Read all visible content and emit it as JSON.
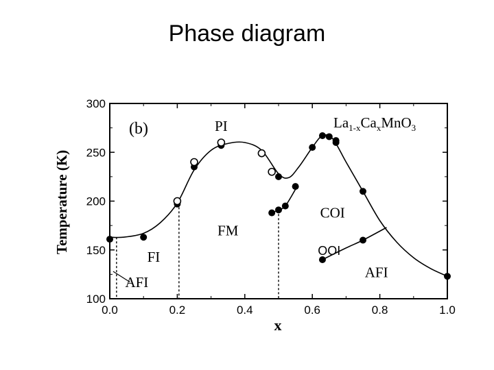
{
  "slide_title": "Phase diagram",
  "chart_data": {
    "type": "scatter",
    "title": "",
    "panel_label": "(b)",
    "compound": {
      "base": "La",
      "sub1": "1-x",
      "mid": "Ca",
      "sub2": "x",
      "tail": "MnO",
      "sub3": "3"
    },
    "xlabel": "x",
    "ylabel": "Temperature (K)",
    "xlim": [
      0.0,
      1.0
    ],
    "ylim": [
      100,
      300
    ],
    "x_ticks": [
      "0.0",
      "0.2",
      "0.4",
      "0.6",
      "0.8",
      "1.0"
    ],
    "y_ticks": [
      "100",
      "150",
      "200",
      "250",
      "300"
    ],
    "series": [
      {
        "marker": "filled",
        "points": [
          [
            0.0,
            161
          ],
          [
            0.1,
            163
          ],
          [
            0.2,
            197
          ],
          [
            0.25,
            235
          ],
          [
            0.33,
            257
          ],
          [
            0.48,
            188
          ],
          [
            0.5,
            191
          ],
          [
            0.5,
            225
          ],
          [
            0.52,
            195
          ],
          [
            0.55,
            215
          ],
          [
            0.6,
            255
          ],
          [
            0.63,
            267
          ],
          [
            0.63,
            140
          ],
          [
            0.65,
            266
          ],
          [
            0.67,
            260
          ],
          [
            0.67,
            262
          ],
          [
            0.75,
            210
          ],
          [
            0.75,
            160
          ],
          [
            1.0,
            123
          ]
        ]
      },
      {
        "marker": "open",
        "points": [
          [
            0.2,
            200
          ],
          [
            0.25,
            240
          ],
          [
            0.33,
            260
          ],
          [
            0.45,
            249
          ],
          [
            0.48,
            230
          ]
        ]
      }
    ],
    "phase_labels": [
      {
        "text": "PI",
        "x": 0.33,
        "y": 272
      },
      {
        "text": "FM",
        "x": 0.35,
        "y": 165
      },
      {
        "text": "FI",
        "x": 0.13,
        "y": 138
      },
      {
        "text": "AFI",
        "x": 0.08,
        "y": 112
      },
      {
        "text": "COI",
        "x": 0.66,
        "y": 183
      },
      {
        "text": "AFI",
        "x": 0.79,
        "y": 122
      }
    ],
    "overlay_label": {
      "text": "OOI",
      "x": 0.65,
      "y": 150
    },
    "boundaries": {
      "main": [
        [
          0.0,
          163
        ],
        [
          0.04,
          163
        ],
        [
          0.1,
          167
        ],
        [
          0.15,
          178
        ],
        [
          0.2,
          198
        ],
        [
          0.25,
          232
        ],
        [
          0.3,
          252
        ],
        [
          0.35,
          259
        ],
        [
          0.4,
          260
        ],
        [
          0.45,
          252
        ],
        [
          0.5,
          228
        ],
        [
          0.53,
          224
        ],
        [
          0.56,
          235
        ],
        [
          0.6,
          255
        ],
        [
          0.63,
          267
        ],
        [
          0.66,
          264
        ],
        [
          0.7,
          240
        ],
        [
          0.75,
          210
        ],
        [
          0.8,
          180
        ],
        [
          0.85,
          158
        ],
        [
          0.9,
          142
        ],
        [
          0.95,
          131
        ],
        [
          1.0,
          123
        ]
      ],
      "coi_afi": [
        [
          0.63,
          140
        ],
        [
          0.7,
          152
        ],
        [
          0.75,
          160
        ],
        [
          0.82,
          173
        ]
      ],
      "coi_fm_branch": [
        [
          0.48,
          188
        ],
        [
          0.5,
          191
        ],
        [
          0.52,
          195
        ],
        [
          0.55,
          212
        ]
      ],
      "dashed_verticals": [
        {
          "x": 0.02,
          "y_top": 163
        },
        {
          "x": 0.205,
          "y_top": 198
        },
        {
          "x": 0.5,
          "y_top": 191
        }
      ],
      "afi_pointer": [
        [
          0.06,
          117
        ],
        [
          0.01,
          128
        ]
      ]
    },
    "grid": false
  }
}
